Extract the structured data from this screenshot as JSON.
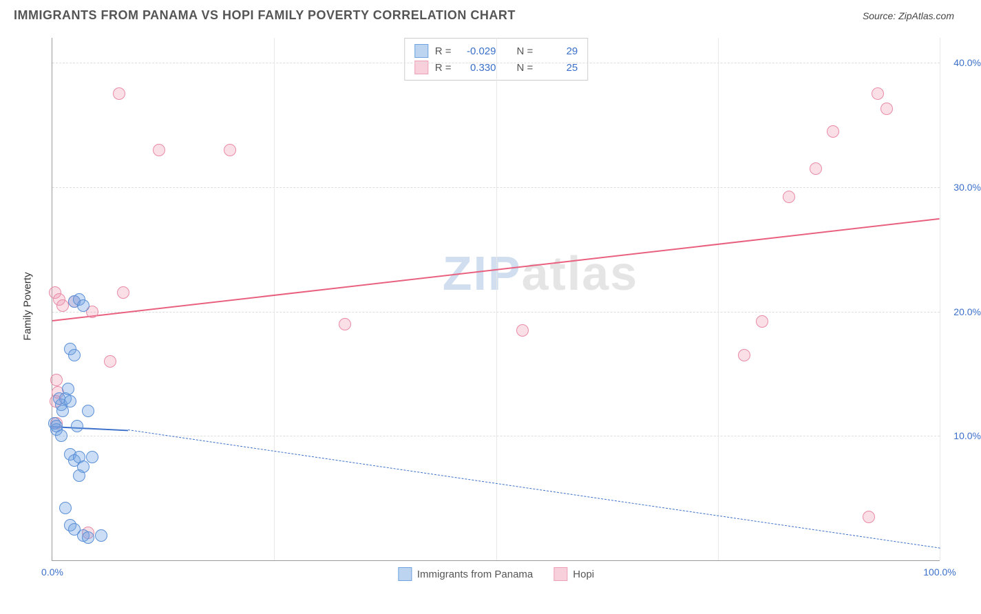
{
  "header": {
    "title": "IMMIGRANTS FROM PANAMA VS HOPI FAMILY POVERTY CORRELATION CHART",
    "source_prefix": "Source: ",
    "source_name": "ZipAtlas.com"
  },
  "watermark": {
    "z": "ZIP",
    "rest": "atlas"
  },
  "chart": {
    "type": "scatter",
    "background_color": "#ffffff",
    "grid_color": "#dddddd",
    "axis_color": "#999999",
    "tick_color": "#3b6fc9",
    "label_color": "#333333",
    "label_fontsize": 15,
    "tick_fontsize": 14,
    "ylabel": "Family Poverty",
    "xlim": [
      0,
      100
    ],
    "ylim": [
      0,
      42
    ],
    "ytick_step": 10,
    "yticks": [
      {
        "v": 10,
        "label": "10.0%"
      },
      {
        "v": 20,
        "label": "20.0%"
      },
      {
        "v": 30,
        "label": "30.0%"
      },
      {
        "v": 40,
        "label": "40.0%"
      }
    ],
    "xticks": [
      {
        "v": 0,
        "label": "0.0%"
      },
      {
        "v": 100,
        "label": "100.0%"
      }
    ],
    "xgrid": [
      25,
      50,
      75,
      100
    ],
    "marker_radius": 9,
    "marker_border_width": 1.5,
    "series_a": {
      "name": "Immigrants from Panama",
      "fill": "rgba(110,160,225,0.35)",
      "stroke": "#5a8fd6",
      "swatch_fill": "#bcd4f0",
      "swatch_border": "#6fa3e0",
      "r": -0.029,
      "r_label": "-0.029",
      "n": 29,
      "n_label": "29",
      "trend": {
        "x1": 0,
        "y1": 10.8,
        "x2": 8.5,
        "y2": 10.5,
        "dash_x2": 100,
        "dash_y2": 1.0,
        "color": "#3b6fc9"
      },
      "points": [
        {
          "x": 0.2,
          "y": 11.0
        },
        {
          "x": 0.5,
          "y": 10.5
        },
        {
          "x": 0.5,
          "y": 10.8
        },
        {
          "x": 1.0,
          "y": 12.5
        },
        {
          "x": 1.2,
          "y": 12.0
        },
        {
          "x": 1.5,
          "y": 13.0
        },
        {
          "x": 1.8,
          "y": 13.8
        },
        {
          "x": 2.0,
          "y": 17.0
        },
        {
          "x": 2.5,
          "y": 16.5
        },
        {
          "x": 2.0,
          "y": 12.8
        },
        {
          "x": 2.5,
          "y": 20.8
        },
        {
          "x": 3.0,
          "y": 21.0
        },
        {
          "x": 3.5,
          "y": 20.5
        },
        {
          "x": 2.0,
          "y": 8.5
        },
        {
          "x": 2.5,
          "y": 8.0
        },
        {
          "x": 3.0,
          "y": 8.3
        },
        {
          "x": 3.5,
          "y": 7.5
        },
        {
          "x": 4.5,
          "y": 8.3
        },
        {
          "x": 3.0,
          "y": 6.8
        },
        {
          "x": 1.5,
          "y": 4.2
        },
        {
          "x": 2.0,
          "y": 2.8
        },
        {
          "x": 2.5,
          "y": 2.5
        },
        {
          "x": 3.5,
          "y": 2.0
        },
        {
          "x": 4.0,
          "y": 1.8
        },
        {
          "x": 5.5,
          "y": 2.0
        },
        {
          "x": 1.0,
          "y": 10.0
        },
        {
          "x": 0.8,
          "y": 13.0
        },
        {
          "x": 2.8,
          "y": 10.8
        },
        {
          "x": 4.0,
          "y": 12.0
        }
      ]
    },
    "series_b": {
      "name": "Hopi",
      "fill": "rgba(240,150,175,0.30)",
      "stroke": "#e88aa5",
      "swatch_fill": "#f7d0db",
      "swatch_border": "#eda0b5",
      "r": 0.33,
      "r_label": "0.330",
      "n": 25,
      "n_label": "25",
      "trend": {
        "x1": 0,
        "y1": 19.3,
        "x2": 100,
        "y2": 27.5,
        "color": "#e9607f"
      },
      "points": [
        {
          "x": 0.3,
          "y": 21.5
        },
        {
          "x": 0.8,
          "y": 21.0
        },
        {
          "x": 1.2,
          "y": 20.5
        },
        {
          "x": 2.5,
          "y": 20.8
        },
        {
          "x": 4.5,
          "y": 20.0
        },
        {
          "x": 0.5,
          "y": 14.5
        },
        {
          "x": 0.6,
          "y": 13.5
        },
        {
          "x": 0.4,
          "y": 12.8
        },
        {
          "x": 0.5,
          "y": 11.0
        },
        {
          "x": 4.0,
          "y": 2.2
        },
        {
          "x": 6.5,
          "y": 16.0
        },
        {
          "x": 7.5,
          "y": 37.5
        },
        {
          "x": 8.0,
          "y": 21.5
        },
        {
          "x": 12.0,
          "y": 33.0
        },
        {
          "x": 20.0,
          "y": 33.0
        },
        {
          "x": 33.0,
          "y": 19.0
        },
        {
          "x": 53.0,
          "y": 18.5
        },
        {
          "x": 78.0,
          "y": 16.5
        },
        {
          "x": 80.0,
          "y": 19.2
        },
        {
          "x": 83.0,
          "y": 29.2
        },
        {
          "x": 86.0,
          "y": 31.5
        },
        {
          "x": 88.0,
          "y": 34.5
        },
        {
          "x": 93.0,
          "y": 37.5
        },
        {
          "x": 94.0,
          "y": 36.3
        },
        {
          "x": 92.0,
          "y": 3.5
        }
      ]
    },
    "legend_top": {
      "r_prefix": "R = ",
      "n_prefix": "N = "
    }
  }
}
